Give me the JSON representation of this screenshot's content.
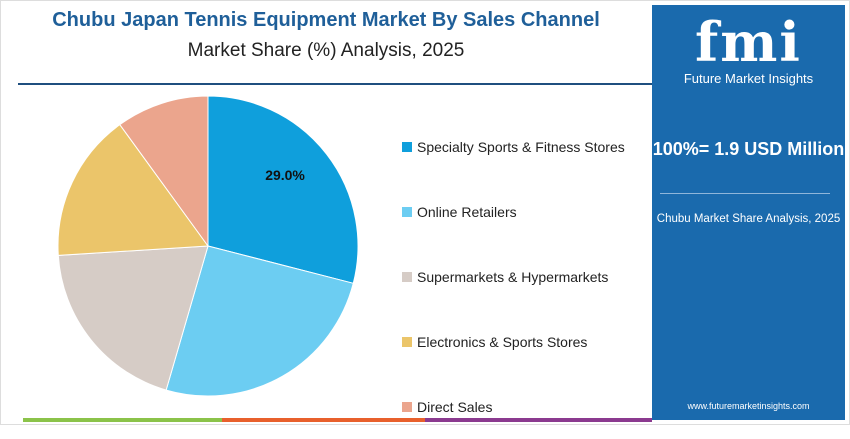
{
  "header": {
    "title": "Chubu Japan Tennis Equipment Market By Sales Channel",
    "subtitle": "Market Share (%) Analysis, 2025"
  },
  "chart_data": {
    "type": "pie",
    "title": "Chubu Japan Tennis Equipment Market By Sales Channel",
    "subtitle": "Market Share (%) Analysis, 2025",
    "start_angle": "12 o'clock",
    "direction": "clockwise",
    "legend_position": "right",
    "categories": [
      "Specialty Sports & Fitness Stores",
      "Online Retailers",
      "Supermarkets & Hypermarkets",
      "Electronics & Sports Stores",
      "Direct Sales"
    ],
    "values": [
      29.0,
      25.5,
      19.5,
      16.0,
      10.0
    ],
    "colors": [
      "#0f9fdc",
      "#6ccdf2",
      "#d6ccc6",
      "#ebc56a",
      "#eba58d"
    ],
    "data_labels": [
      "29.0%",
      "",
      "",
      "",
      ""
    ]
  },
  "panel": {
    "logo_text": "fmi",
    "logo_name": "Future Market Insights",
    "total": "100%= 1.9 USD Million",
    "note": "Chubu Market Share Analysis, 2025",
    "url": "www.futuremarketinsights.com",
    "color": "#1a6aad"
  },
  "footer_colors": [
    "#8bc34a",
    "#e8602c",
    "#8b3a8f"
  ]
}
